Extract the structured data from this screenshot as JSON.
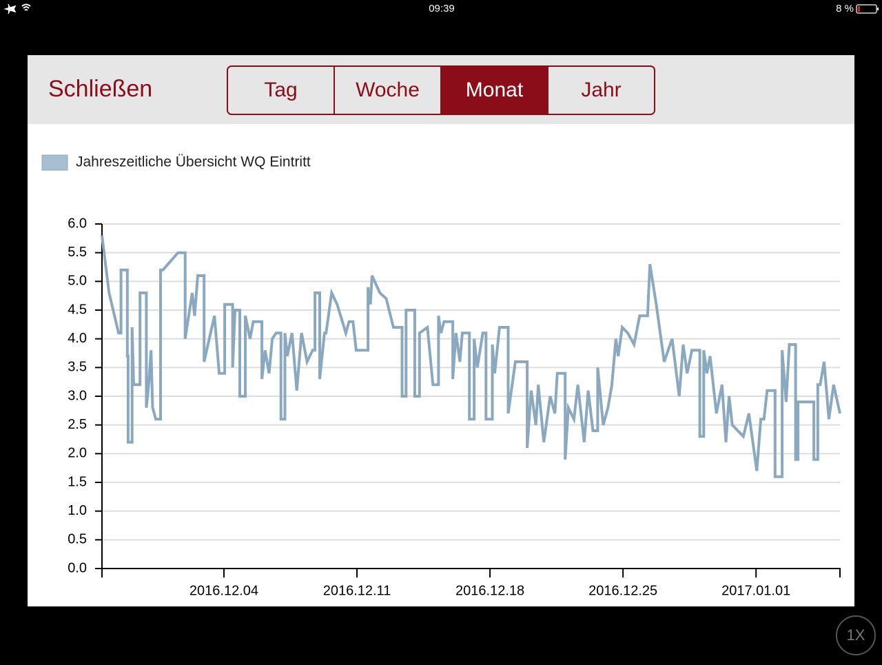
{
  "status_bar": {
    "time": "09:39",
    "battery": "8 %"
  },
  "toolbar": {
    "close": "Schließen",
    "tabs": [
      "Tag",
      "Woche",
      "Monat",
      "Jahr"
    ],
    "selected_tab": 2
  },
  "zoom_button": "1X",
  "chart_data": {
    "type": "line",
    "x": [
      "2016-11-27T14:00",
      "2016-11-27T23:00",
      "2016-11-28T11:00",
      "2016-11-28T14:00",
      "2016-11-28T14:00",
      "2016-11-28T22:00",
      "2016-11-28T22:00",
      "2016-11-28T23:00",
      "2016-11-28T23:00",
      "2016-11-29T04:00",
      "2016-11-29T04:00",
      "2016-11-29T06:00",
      "2016-11-29T14:00",
      "2016-11-29T14:00",
      "2016-11-29T22:00",
      "2016-11-29T22:00",
      "2016-11-30T01:00",
      "2016-11-30T04:00",
      "2016-11-30T06:00",
      "2016-11-30T10:00",
      "2016-11-30T16:00",
      "2016-11-30T16:00",
      "2016-11-30T19:00",
      "2016-12-01T14:00",
      "2016-12-01T23:00",
      "2016-12-01T23:00",
      "2016-12-02T08:00",
      "2016-12-02T11:00",
      "2016-12-02T15:00",
      "2016-12-02T23:00",
      "2016-12-02T23:00",
      "2016-12-03T12:00",
      "2016-12-03T18:00",
      "2016-12-04T01:00",
      "2016-12-04T01:00",
      "2016-12-04T11:00",
      "2016-12-04T11:00",
      "2016-12-04T14:00",
      "2016-12-04T20:00",
      "2016-12-04T20:00",
      "2016-12-05T03:00",
      "2016-12-05T03:00",
      "2016-12-05T09:00",
      "2016-12-05T13:00",
      "2016-12-06T00:00",
      "2016-12-06T00:00",
      "2016-12-06T04:00",
      "2016-12-06T09:00",
      "2016-12-06T13:00",
      "2016-12-06T18:00",
      "2016-12-07T00:00",
      "2016-12-07T00:00",
      "2016-12-07T05:00",
      "2016-12-07T05:00",
      "2016-12-07T08:00",
      "2016-12-07T14:00",
      "2016-12-07T20:00",
      "2016-12-08T02:00",
      "2016-12-08T09:00",
      "2016-12-08T16:00",
      "2016-12-08T19:00",
      "2016-12-08T19:00",
      "2016-12-09T01:00",
      "2016-12-09T01:00",
      "2016-12-09T07:00",
      "2016-12-09T09:00",
      "2016-12-09T16:00",
      "2016-12-09T23:00",
      "2016-12-10T10:00",
      "2016-12-10T14:00",
      "2016-12-10T19:00",
      "2016-12-10T23:00",
      "2016-12-11T14:00",
      "2016-12-11T14:00",
      "2016-12-11T17:00",
      "2016-12-11T19:00",
      "2016-12-12T05:00",
      "2016-12-12T13:00",
      "2016-12-12T22:00",
      "2016-12-13T09:00",
      "2016-12-13T09:00",
      "2016-12-13T14:00",
      "2016-12-13T14:00",
      "2016-12-14T01:00",
      "2016-12-14T01:00",
      "2016-12-14T07:00",
      "2016-12-14T07:00",
      "2016-12-14T17:00",
      "2016-12-15T00:00",
      "2016-12-15T07:00",
      "2016-12-15T07:00",
      "2016-12-15T10:00",
      "2016-12-15T14:00",
      "2016-12-16T01:00",
      "2016-12-16T01:00",
      "2016-12-16T05:00",
      "2016-12-16T10:00",
      "2016-12-16T13:00",
      "2016-12-16T22:00",
      "2016-12-16T22:00",
      "2016-12-17T04:00",
      "2016-12-17T04:00",
      "2016-12-17T08:00",
      "2016-12-17T15:00",
      "2016-12-17T19:00",
      "2016-12-17T19:00",
      "2016-12-18T03:00",
      "2016-12-18T03:00",
      "2016-12-18T06:00",
      "2016-12-18T12:00",
      "2016-12-18T23:00",
      "2016-12-18T23:00",
      "2016-12-19T08:00",
      "2016-12-19T23:00",
      "2016-12-19T23:00",
      "2016-12-20T04:00",
      "2016-12-20T10:00",
      "2016-12-20T13:00",
      "2016-12-20T20:00",
      "2016-12-21T04:00",
      "2016-12-21T10:00",
      "2016-12-21T13:00",
      "2016-12-21T23:00",
      "2016-12-21T23:00",
      "2016-12-22T03:00",
      "2016-12-22T10:00",
      "2016-12-22T15:00",
      "2016-12-22T23:00",
      "2016-12-23T04:00",
      "2016-12-23T10:00",
      "2016-12-23T16:00",
      "2016-12-23T16:00",
      "2016-12-23T23:00",
      "2016-12-24T05:00",
      "2016-12-24T10:00",
      "2016-12-24T15:00",
      "2016-12-24T18:00",
      "2016-12-24T23:00",
      "2016-12-25T06:00",
      "2016-12-25T14:00",
      "2016-12-25T21:00",
      "2016-12-26T07:00",
      "2016-12-26T10:00",
      "2016-12-26T18:00",
      "2016-12-27T04:00",
      "2016-12-27T14:00",
      "2016-12-27T23:00",
      "2016-12-28T04:00",
      "2016-12-28T09:00",
      "2016-12-28T15:00",
      "2016-12-29T01:00",
      "2016-12-29T01:00",
      "2016-12-29T06:00",
      "2016-12-29T06:00",
      "2016-12-29T10:00",
      "2016-12-29T14:00",
      "2016-12-29T22:00",
      "2016-12-30T05:00",
      "2016-12-30T10:00",
      "2016-12-30T14:00",
      "2016-12-30T18:00",
      "2016-12-31T08:00",
      "2016-12-31T15:00",
      "2017-01-01T01:00",
      "2017-01-01T06:00",
      "2017-01-01T10:00",
      "2017-01-01T14:00",
      "2017-01-02T00:00",
      "2017-01-02T00:00",
      "2017-01-02T09:00",
      "2017-01-02T09:00",
      "2017-01-02T14:00",
      "2017-01-02T18:00",
      "2017-01-03T02:00",
      "2017-01-03T02:00",
      "2017-01-03T05:00",
      "2017-01-03T05:00",
      "2017-01-04T01:00",
      "2017-01-04T01:00",
      "2017-01-04T06:00",
      "2017-01-04T06:00",
      "2017-01-04T09:00",
      "2017-01-04T14:00",
      "2017-01-04T20:00",
      "2017-01-05T02:00",
      "2017-01-05T10:00"
    ],
    "series": [
      {
        "name": "Jahreszeitliche Übersicht WQ Eintritt",
        "color": "#8aa9c1",
        "values": [
          5.8,
          4.8,
          4.1,
          4.1,
          5.2,
          5.2,
          3.7,
          3.7,
          2.2,
          2.2,
          4.2,
          3.2,
          3.2,
          4.8,
          4.8,
          2.8,
          3.2,
          3.8,
          2.8,
          2.6,
          2.6,
          5.2,
          5.2,
          5.5,
          5.5,
          4.0,
          4.8,
          4.4,
          5.1,
          5.1,
          3.6,
          4.4,
          3.4,
          3.4,
          4.6,
          4.6,
          3.5,
          4.5,
          4.5,
          3.0,
          3.0,
          4.4,
          4.0,
          4.3,
          4.3,
          3.3,
          3.8,
          3.4,
          4.0,
          4.1,
          4.1,
          2.6,
          2.6,
          4.1,
          3.7,
          4.1,
          3.1,
          4.1,
          3.6,
          3.8,
          3.8,
          4.8,
          4.8,
          3.3,
          4.1,
          4.1,
          4.8,
          4.6,
          4.1,
          4.3,
          4.3,
          3.8,
          3.8,
          4.9,
          4.6,
          5.1,
          4.8,
          4.7,
          4.2,
          4.2,
          3.0,
          3.0,
          4.5,
          4.5,
          3.0,
          3.0,
          4.1,
          4.2,
          3.2,
          3.2,
          4.4,
          4.1,
          4.3,
          4.3,
          3.3,
          4.1,
          3.6,
          4.1,
          4.1,
          2.6,
          2.6,
          4.0,
          3.5,
          4.1,
          4.1,
          2.6,
          2.6,
          3.9,
          3.4,
          4.2,
          4.2,
          2.7,
          3.6,
          3.6,
          2.1,
          3.1,
          2.5,
          3.2,
          2.2,
          3.0,
          2.7,
          3.4,
          3.4,
          1.9,
          2.8,
          2.6,
          3.2,
          2.2,
          3.1,
          2.4,
          2.4,
          3.5,
          2.5,
          2.8,
          3.2,
          4.0,
          3.7,
          4.2,
          4.1,
          3.9,
          4.4,
          4.4,
          5.3,
          4.6,
          3.6,
          4.0,
          3.0,
          3.9,
          3.4,
          3.8,
          3.8,
          2.3,
          2.3,
          3.8,
          3.4,
          3.7,
          2.7,
          3.2,
          2.2,
          3.0,
          2.5,
          2.3,
          2.7,
          1.7,
          2.6,
          2.6,
          3.1,
          3.1,
          1.6,
          1.6,
          3.8,
          2.9,
          3.9,
          3.9,
          1.9,
          1.9,
          2.9,
          2.9,
          1.9,
          1.9,
          3.2,
          3.2,
          3.6,
          2.6,
          3.2,
          2.7
        ]
      }
    ],
    "xlim": [
      "2016-11-27T14:00",
      "2017-01-05T10:00"
    ],
    "xticks": [
      {
        "value": "2016-12-04T00:00",
        "label": "2016.12.04"
      },
      {
        "value": "2016-12-11T00:00",
        "label": "2016.12.11"
      },
      {
        "value": "2016-12-18T00:00",
        "label": "2016.12.18"
      },
      {
        "value": "2016-12-25T00:00",
        "label": "2016.12.25"
      },
      {
        "value": "2017-01-01T00:00",
        "label": "2017.01.01"
      }
    ],
    "ylim": [
      0,
      6
    ],
    "yticks": [
      {
        "value": 0,
        "label": "0.0"
      },
      0.5,
      {
        "value": 1,
        "label": "1.0"
      },
      1.5,
      {
        "value": 2,
        "label": "2.0"
      },
      2.5,
      {
        "value": 3,
        "label": "3.0"
      },
      3.5,
      {
        "value": 4,
        "label": "4.0"
      },
      4.5,
      {
        "value": 5,
        "label": "5.0"
      },
      5.5,
      {
        "value": 6,
        "label": "6.0"
      }
    ],
    "grid": true
  }
}
